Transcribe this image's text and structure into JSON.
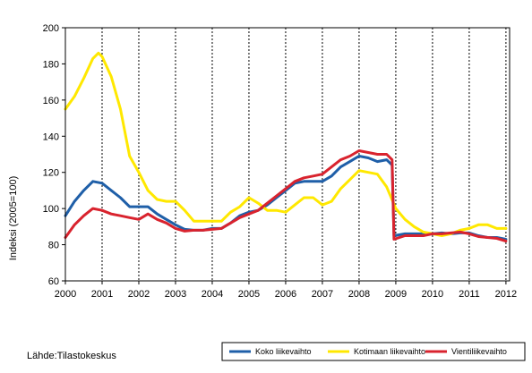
{
  "chart_data": {
    "type": "line",
    "ylabel": "Indeksi (2005=100)",
    "ylim": [
      60,
      200
    ],
    "yticks": [
      60,
      80,
      100,
      120,
      140,
      160,
      180,
      200
    ],
    "xlim": [
      2000,
      2012.1
    ],
    "xticks": [
      "2000",
      "2001",
      "2002",
      "2003",
      "2004",
      "2005",
      "2006",
      "2007",
      "2008",
      "2009",
      "2010",
      "2011",
      "2012"
    ],
    "grid": "vertical dashed lines at year boundaries",
    "legend_position": "bottom-right",
    "source": "Lähde:Tilastokeskus",
    "series": [
      {
        "name": "Koko liikevaihto",
        "color": "#1f5fa8",
        "points": [
          [
            2000.0,
            96
          ],
          [
            2000.25,
            104
          ],
          [
            2000.5,
            110
          ],
          [
            2000.75,
            115
          ],
          [
            2001.0,
            114
          ],
          [
            2001.25,
            110
          ],
          [
            2001.5,
            106
          ],
          [
            2001.75,
            101
          ],
          [
            2002.0,
            101
          ],
          [
            2002.25,
            101
          ],
          [
            2002.5,
            97
          ],
          [
            2002.75,
            94
          ],
          [
            2003.0,
            91
          ],
          [
            2003.25,
            88.5
          ],
          [
            2003.5,
            88
          ],
          [
            2003.75,
            88
          ],
          [
            2004.0,
            89
          ],
          [
            2004.25,
            89
          ],
          [
            2004.5,
            92
          ],
          [
            2004.75,
            96
          ],
          [
            2005.0,
            98
          ],
          [
            2005.25,
            99
          ],
          [
            2005.5,
            102
          ],
          [
            2005.75,
            106
          ],
          [
            2006.0,
            110
          ],
          [
            2006.25,
            114
          ],
          [
            2006.5,
            115
          ],
          [
            2006.75,
            115
          ],
          [
            2007.0,
            115
          ],
          [
            2007.25,
            118
          ],
          [
            2007.5,
            123
          ],
          [
            2007.75,
            126
          ],
          [
            2008.0,
            129
          ],
          [
            2008.25,
            128
          ],
          [
            2008.5,
            126
          ],
          [
            2008.75,
            127
          ],
          [
            2008.9,
            124
          ],
          [
            2008.95,
            85
          ],
          [
            2009.25,
            86
          ],
          [
            2009.5,
            86
          ],
          [
            2009.75,
            86
          ],
          [
            2010.0,
            86
          ],
          [
            2010.25,
            86.5
          ],
          [
            2010.5,
            86
          ],
          [
            2010.75,
            86.5
          ],
          [
            2011.0,
            86.5
          ],
          [
            2011.25,
            85
          ],
          [
            2011.5,
            84
          ],
          [
            2011.75,
            84
          ],
          [
            2012.0,
            83
          ]
        ]
      },
      {
        "name": "Kotimaan liikevaihto",
        "color": "#ffe800",
        "points": [
          [
            2000.0,
            155
          ],
          [
            2000.25,
            162
          ],
          [
            2000.5,
            172
          ],
          [
            2000.75,
            183
          ],
          [
            2000.9,
            186
          ],
          [
            2001.0,
            184
          ],
          [
            2001.25,
            173
          ],
          [
            2001.5,
            155
          ],
          [
            2001.75,
            129
          ],
          [
            2002.0,
            120
          ],
          [
            2002.25,
            110
          ],
          [
            2002.5,
            105
          ],
          [
            2002.75,
            104
          ],
          [
            2003.0,
            104
          ],
          [
            2003.25,
            99
          ],
          [
            2003.5,
            93
          ],
          [
            2003.75,
            93
          ],
          [
            2004.0,
            93
          ],
          [
            2004.25,
            93
          ],
          [
            2004.5,
            98
          ],
          [
            2004.75,
            101
          ],
          [
            2005.0,
            106
          ],
          [
            2005.25,
            103
          ],
          [
            2005.5,
            99
          ],
          [
            2005.75,
            99
          ],
          [
            2006.0,
            98
          ],
          [
            2006.25,
            102
          ],
          [
            2006.5,
            106
          ],
          [
            2006.75,
            106
          ],
          [
            2007.0,
            102
          ],
          [
            2007.25,
            104
          ],
          [
            2007.5,
            111
          ],
          [
            2007.75,
            116
          ],
          [
            2008.0,
            121
          ],
          [
            2008.25,
            120
          ],
          [
            2008.5,
            119
          ],
          [
            2008.75,
            112
          ],
          [
            2009.0,
            100
          ],
          [
            2009.25,
            94
          ],
          [
            2009.5,
            90
          ],
          [
            2009.75,
            87
          ],
          [
            2010.0,
            86
          ],
          [
            2010.25,
            85
          ],
          [
            2010.5,
            86
          ],
          [
            2010.75,
            88
          ],
          [
            2011.0,
            89
          ],
          [
            2011.25,
            91
          ],
          [
            2011.5,
            91
          ],
          [
            2011.75,
            89
          ],
          [
            2012.0,
            89
          ]
        ]
      },
      {
        "name": "Vientiliikevaihto",
        "color": "#d9232e",
        "points": [
          [
            2000.0,
            84
          ],
          [
            2000.25,
            91
          ],
          [
            2000.5,
            96
          ],
          [
            2000.75,
            100
          ],
          [
            2001.0,
            99
          ],
          [
            2001.25,
            97
          ],
          [
            2001.5,
            96
          ],
          [
            2001.75,
            95
          ],
          [
            2002.0,
            94
          ],
          [
            2002.25,
            97
          ],
          [
            2002.5,
            94
          ],
          [
            2002.75,
            92
          ],
          [
            2003.0,
            89
          ],
          [
            2003.25,
            87.5
          ],
          [
            2003.5,
            88
          ],
          [
            2003.75,
            88
          ],
          [
            2004.0,
            88.5
          ],
          [
            2004.25,
            89
          ],
          [
            2004.5,
            92
          ],
          [
            2004.75,
            95
          ],
          [
            2005.0,
            97
          ],
          [
            2005.25,
            99
          ],
          [
            2005.5,
            103
          ],
          [
            2005.75,
            107
          ],
          [
            2006.0,
            111
          ],
          [
            2006.25,
            115
          ],
          [
            2006.5,
            117
          ],
          [
            2006.75,
            118
          ],
          [
            2007.0,
            119
          ],
          [
            2007.25,
            123
          ],
          [
            2007.5,
            127
          ],
          [
            2007.75,
            129
          ],
          [
            2008.0,
            132
          ],
          [
            2008.25,
            131
          ],
          [
            2008.5,
            130
          ],
          [
            2008.75,
            130
          ],
          [
            2008.9,
            127
          ],
          [
            2008.95,
            83
          ],
          [
            2009.25,
            85
          ],
          [
            2009.5,
            85
          ],
          [
            2009.75,
            85
          ],
          [
            2010.0,
            86
          ],
          [
            2010.25,
            86
          ],
          [
            2010.5,
            86.5
          ],
          [
            2010.75,
            87
          ],
          [
            2011.0,
            86
          ],
          [
            2011.25,
            84.5
          ],
          [
            2011.5,
            84
          ],
          [
            2011.75,
            83.5
          ],
          [
            2012.0,
            82
          ]
        ]
      }
    ]
  }
}
